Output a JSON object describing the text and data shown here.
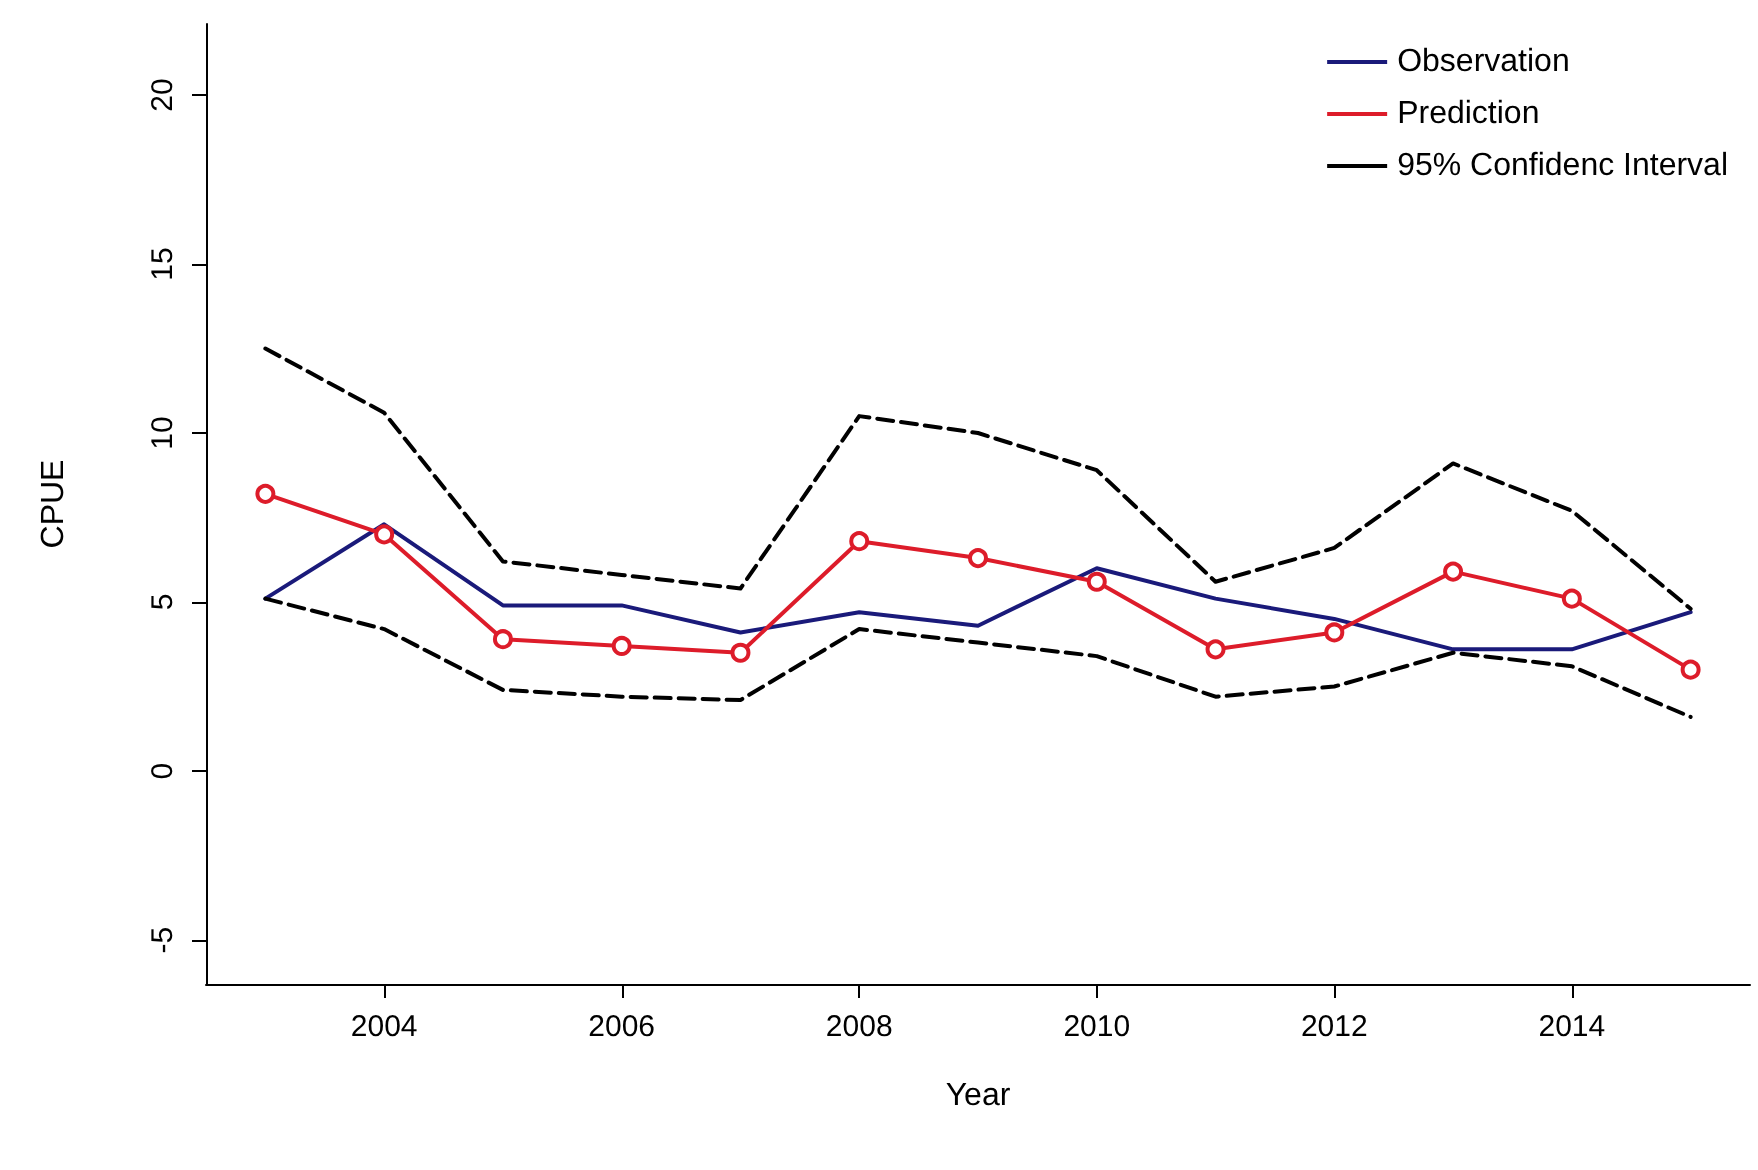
{
  "chart_data": {
    "type": "line",
    "xlabel": "Year",
    "ylabel": "CPUE",
    "x": [
      2003,
      2004,
      2005,
      2006,
      2007,
      2008,
      2009,
      2010,
      2011,
      2012,
      2013,
      2014,
      2015
    ],
    "series": [
      {
        "name": "Observation",
        "color": "#1a1a7a",
        "marker": "none",
        "line_style": "solid",
        "values": [
          5.1,
          7.3,
          4.9,
          4.9,
          4.1,
          4.7,
          4.3,
          6.0,
          5.1,
          4.5,
          3.6,
          3.6,
          4.7
        ]
      },
      {
        "name": "Prediction",
        "color": "#dd1c2a",
        "marker": "circle",
        "line_style": "solid",
        "values": [
          8.2,
          7.0,
          3.9,
          3.7,
          3.5,
          6.8,
          6.3,
          5.6,
          3.6,
          4.1,
          5.9,
          5.1,
          3.0
        ]
      },
      {
        "name": "95% Confidenc Interval",
        "color": "#000000",
        "marker": "none",
        "line_style": "dashed",
        "values": [
          12.5,
          10.6,
          6.2,
          5.8,
          5.4,
          10.5,
          10.0,
          8.9,
          5.6,
          6.6,
          9.1,
          7.7,
          4.8
        ]
      },
      {
        "color": "#000000",
        "marker": "none",
        "line_style": "dashed",
        "values": [
          5.1,
          4.2,
          2.4,
          2.2,
          2.1,
          4.2,
          3.8,
          3.4,
          2.2,
          2.5,
          3.5,
          3.1,
          1.6
        ]
      }
    ],
    "xlim": [
      2002.5,
      2015.5
    ],
    "xticks": [
      2004,
      2006,
      2008,
      2010,
      2012,
      2014
    ],
    "ylim": [
      -6.3,
      22.1
    ],
    "yticks": [
      -5,
      0,
      5,
      10,
      15,
      20
    ],
    "grid": false,
    "legend": "top right"
  }
}
